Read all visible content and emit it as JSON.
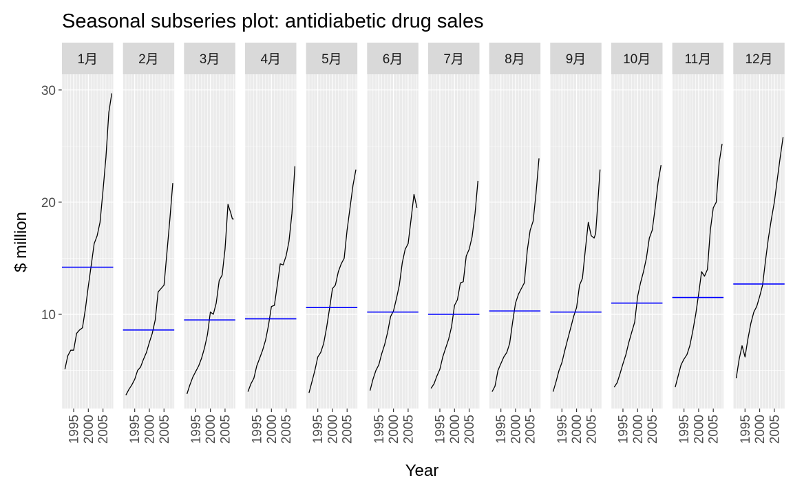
{
  "chart_data": {
    "type": "line",
    "title": "Seasonal subseries plot: antidiabetic drug sales",
    "xlabel": "Year",
    "ylabel": "$ million",
    "ylim": [
      1.6,
      31.4
    ],
    "y_ticks": [
      10,
      20,
      30
    ],
    "x_ticks": [
      1995,
      2000,
      2005
    ],
    "x_range": [
      1991,
      2008.5
    ],
    "grid": true,
    "colors": {
      "series": "#000000",
      "mean_line": "#0000ff",
      "panel": "#ebebeb",
      "strip": "#d9d9d9",
      "grid": "#ffffff"
    },
    "facets": [
      {
        "label": "1月",
        "mean": 14.2,
        "x": [
          1992,
          1993,
          1994,
          1995,
          1996,
          1997,
          1998,
          1999,
          2000,
          2001,
          2002,
          2003,
          2004,
          2005,
          2006,
          2007,
          2008
        ],
        "values": [
          5.1,
          6.3,
          6.8,
          6.8,
          8.3,
          8.6,
          8.8,
          10.5,
          12.5,
          14.4,
          16.3,
          17.0,
          18.2,
          21.0,
          24.0,
          28.0,
          29.7
        ]
      },
      {
        "label": "2月",
        "mean": 8.6,
        "x": [
          1992,
          1993,
          1994,
          1995,
          1996,
          1997,
          1998,
          1999,
          2000,
          2001,
          2002,
          2003,
          2004,
          2005,
          2006,
          2007,
          2008
        ],
        "values": [
          2.8,
          3.3,
          3.7,
          4.2,
          5.0,
          5.3,
          6.0,
          6.6,
          7.5,
          8.3,
          9.5,
          12.0,
          12.3,
          12.6,
          15.5,
          18.5,
          21.7
        ]
      },
      {
        "label": "3月",
        "mean": 9.5,
        "x": [
          1992,
          1993,
          1994,
          1995,
          1996,
          1997,
          1998,
          1999,
          2000,
          2001,
          2002,
          2003,
          2004,
          2005,
          2006,
          2007,
          2007.5,
          2008
        ],
        "values": [
          2.9,
          3.7,
          4.4,
          4.9,
          5.4,
          6.1,
          7.0,
          8.2,
          10.2,
          10.0,
          11.0,
          13.0,
          13.5,
          15.8,
          19.8,
          19.0,
          18.5,
          18.5
        ]
      },
      {
        "label": "4月",
        "mean": 9.6,
        "x": [
          1992,
          1993,
          1994,
          1995,
          1996,
          1997,
          1998,
          1999,
          2000,
          2001,
          2002,
          2003,
          2004,
          2005,
          2006,
          2007,
          2008
        ],
        "values": [
          3.1,
          3.8,
          4.3,
          5.4,
          6.1,
          6.8,
          7.7,
          9.0,
          10.7,
          10.8,
          12.6,
          14.5,
          14.4,
          15.2,
          16.5,
          19.0,
          23.2
        ]
      },
      {
        "label": "5月",
        "mean": 10.6,
        "x": [
          1992,
          1993,
          1994,
          1995,
          1996,
          1997,
          1998,
          1999,
          2000,
          2001,
          2002,
          2003,
          2004,
          2005,
          2006,
          2007,
          2008
        ],
        "values": [
          3.0,
          4.0,
          5.0,
          6.2,
          6.6,
          7.4,
          8.8,
          10.5,
          12.3,
          12.6,
          13.8,
          14.5,
          15.0,
          17.5,
          19.5,
          21.5,
          22.9
        ]
      },
      {
        "label": "6月",
        "mean": 10.2,
        "x": [
          1992,
          1993,
          1994,
          1995,
          1996,
          1997,
          1998,
          1999,
          2000,
          2001,
          2002,
          2003,
          2004,
          2005,
          2006,
          2007,
          2008
        ],
        "values": [
          3.2,
          4.2,
          5.0,
          5.5,
          6.5,
          7.3,
          8.4,
          9.8,
          10.3,
          11.4,
          12.6,
          14.6,
          15.8,
          16.3,
          18.5,
          20.7,
          19.5
        ]
      },
      {
        "label": "7月",
        "mean": 10.0,
        "x": [
          1992,
          1993,
          1994,
          1995,
          1996,
          1997,
          1998,
          1999,
          2000,
          2001,
          2002,
          2003,
          2004,
          2005,
          2006,
          2007,
          2008
        ],
        "values": [
          3.4,
          3.8,
          4.5,
          5.1,
          6.2,
          7.0,
          7.8,
          8.9,
          10.8,
          11.3,
          12.8,
          12.9,
          15.2,
          15.8,
          16.9,
          19.0,
          21.9
        ]
      },
      {
        "label": "8月",
        "mean": 10.3,
        "x": [
          1992,
          1993,
          1994,
          1995,
          1996,
          1997,
          1998,
          1999,
          2000,
          2001,
          2002,
          2003,
          2004,
          2005,
          2006,
          2007,
          2008
        ],
        "values": [
          3.1,
          3.6,
          5.0,
          5.6,
          6.2,
          6.6,
          7.4,
          9.3,
          11.0,
          11.8,
          12.3,
          12.8,
          15.7,
          17.5,
          18.3,
          20.8,
          23.9
        ]
      },
      {
        "label": "9月",
        "mean": 10.2,
        "x": [
          1992,
          1993,
          1994,
          1995,
          1996,
          1997,
          1998,
          1999,
          2000,
          2001,
          2002,
          2003,
          2004,
          2005,
          2006,
          2006.5,
          2007,
          2008
        ],
        "values": [
          3.1,
          4.0,
          5.0,
          5.7,
          6.8,
          7.8,
          8.8,
          9.8,
          10.6,
          12.6,
          13.2,
          15.8,
          18.2,
          17.0,
          16.8,
          17.2,
          19.0,
          22.9
        ]
      },
      {
        "label": "10月",
        "mean": 11.0,
        "x": [
          1992,
          1993,
          1994,
          1995,
          1996,
          1997,
          1998,
          1999,
          2000,
          2001,
          2002,
          2003,
          2004,
          2005,
          2006,
          2007,
          2008
        ],
        "values": [
          3.5,
          3.9,
          4.7,
          5.6,
          6.4,
          7.5,
          8.4,
          9.3,
          11.6,
          12.8,
          13.8,
          15.0,
          16.8,
          17.5,
          19.5,
          21.8,
          23.3
        ]
      },
      {
        "label": "11月",
        "mean": 11.5,
        "x": [
          1992,
          1993,
          1994,
          1995,
          1996,
          1997,
          1998,
          1999,
          2000,
          2001,
          2002,
          2003,
          2004,
          2005,
          2006,
          2007,
          2008
        ],
        "values": [
          3.5,
          4.5,
          5.5,
          6.0,
          6.4,
          7.2,
          8.5,
          10.0,
          11.8,
          13.8,
          13.4,
          14.0,
          17.5,
          19.5,
          20.0,
          23.5,
          25.2
        ]
      },
      {
        "label": "12月",
        "mean": 12.7,
        "x": [
          1992,
          1993,
          1994,
          1995,
          1996,
          1997,
          1998,
          1999,
          2000,
          2001,
          2002,
          2003,
          2004,
          2005,
          2006,
          2007,
          2008
        ],
        "values": [
          4.3,
          6.0,
          7.2,
          6.2,
          7.8,
          9.2,
          10.2,
          10.7,
          11.6,
          12.6,
          14.8,
          16.8,
          18.5,
          20.0,
          22.0,
          24.0,
          25.8
        ]
      }
    ]
  }
}
